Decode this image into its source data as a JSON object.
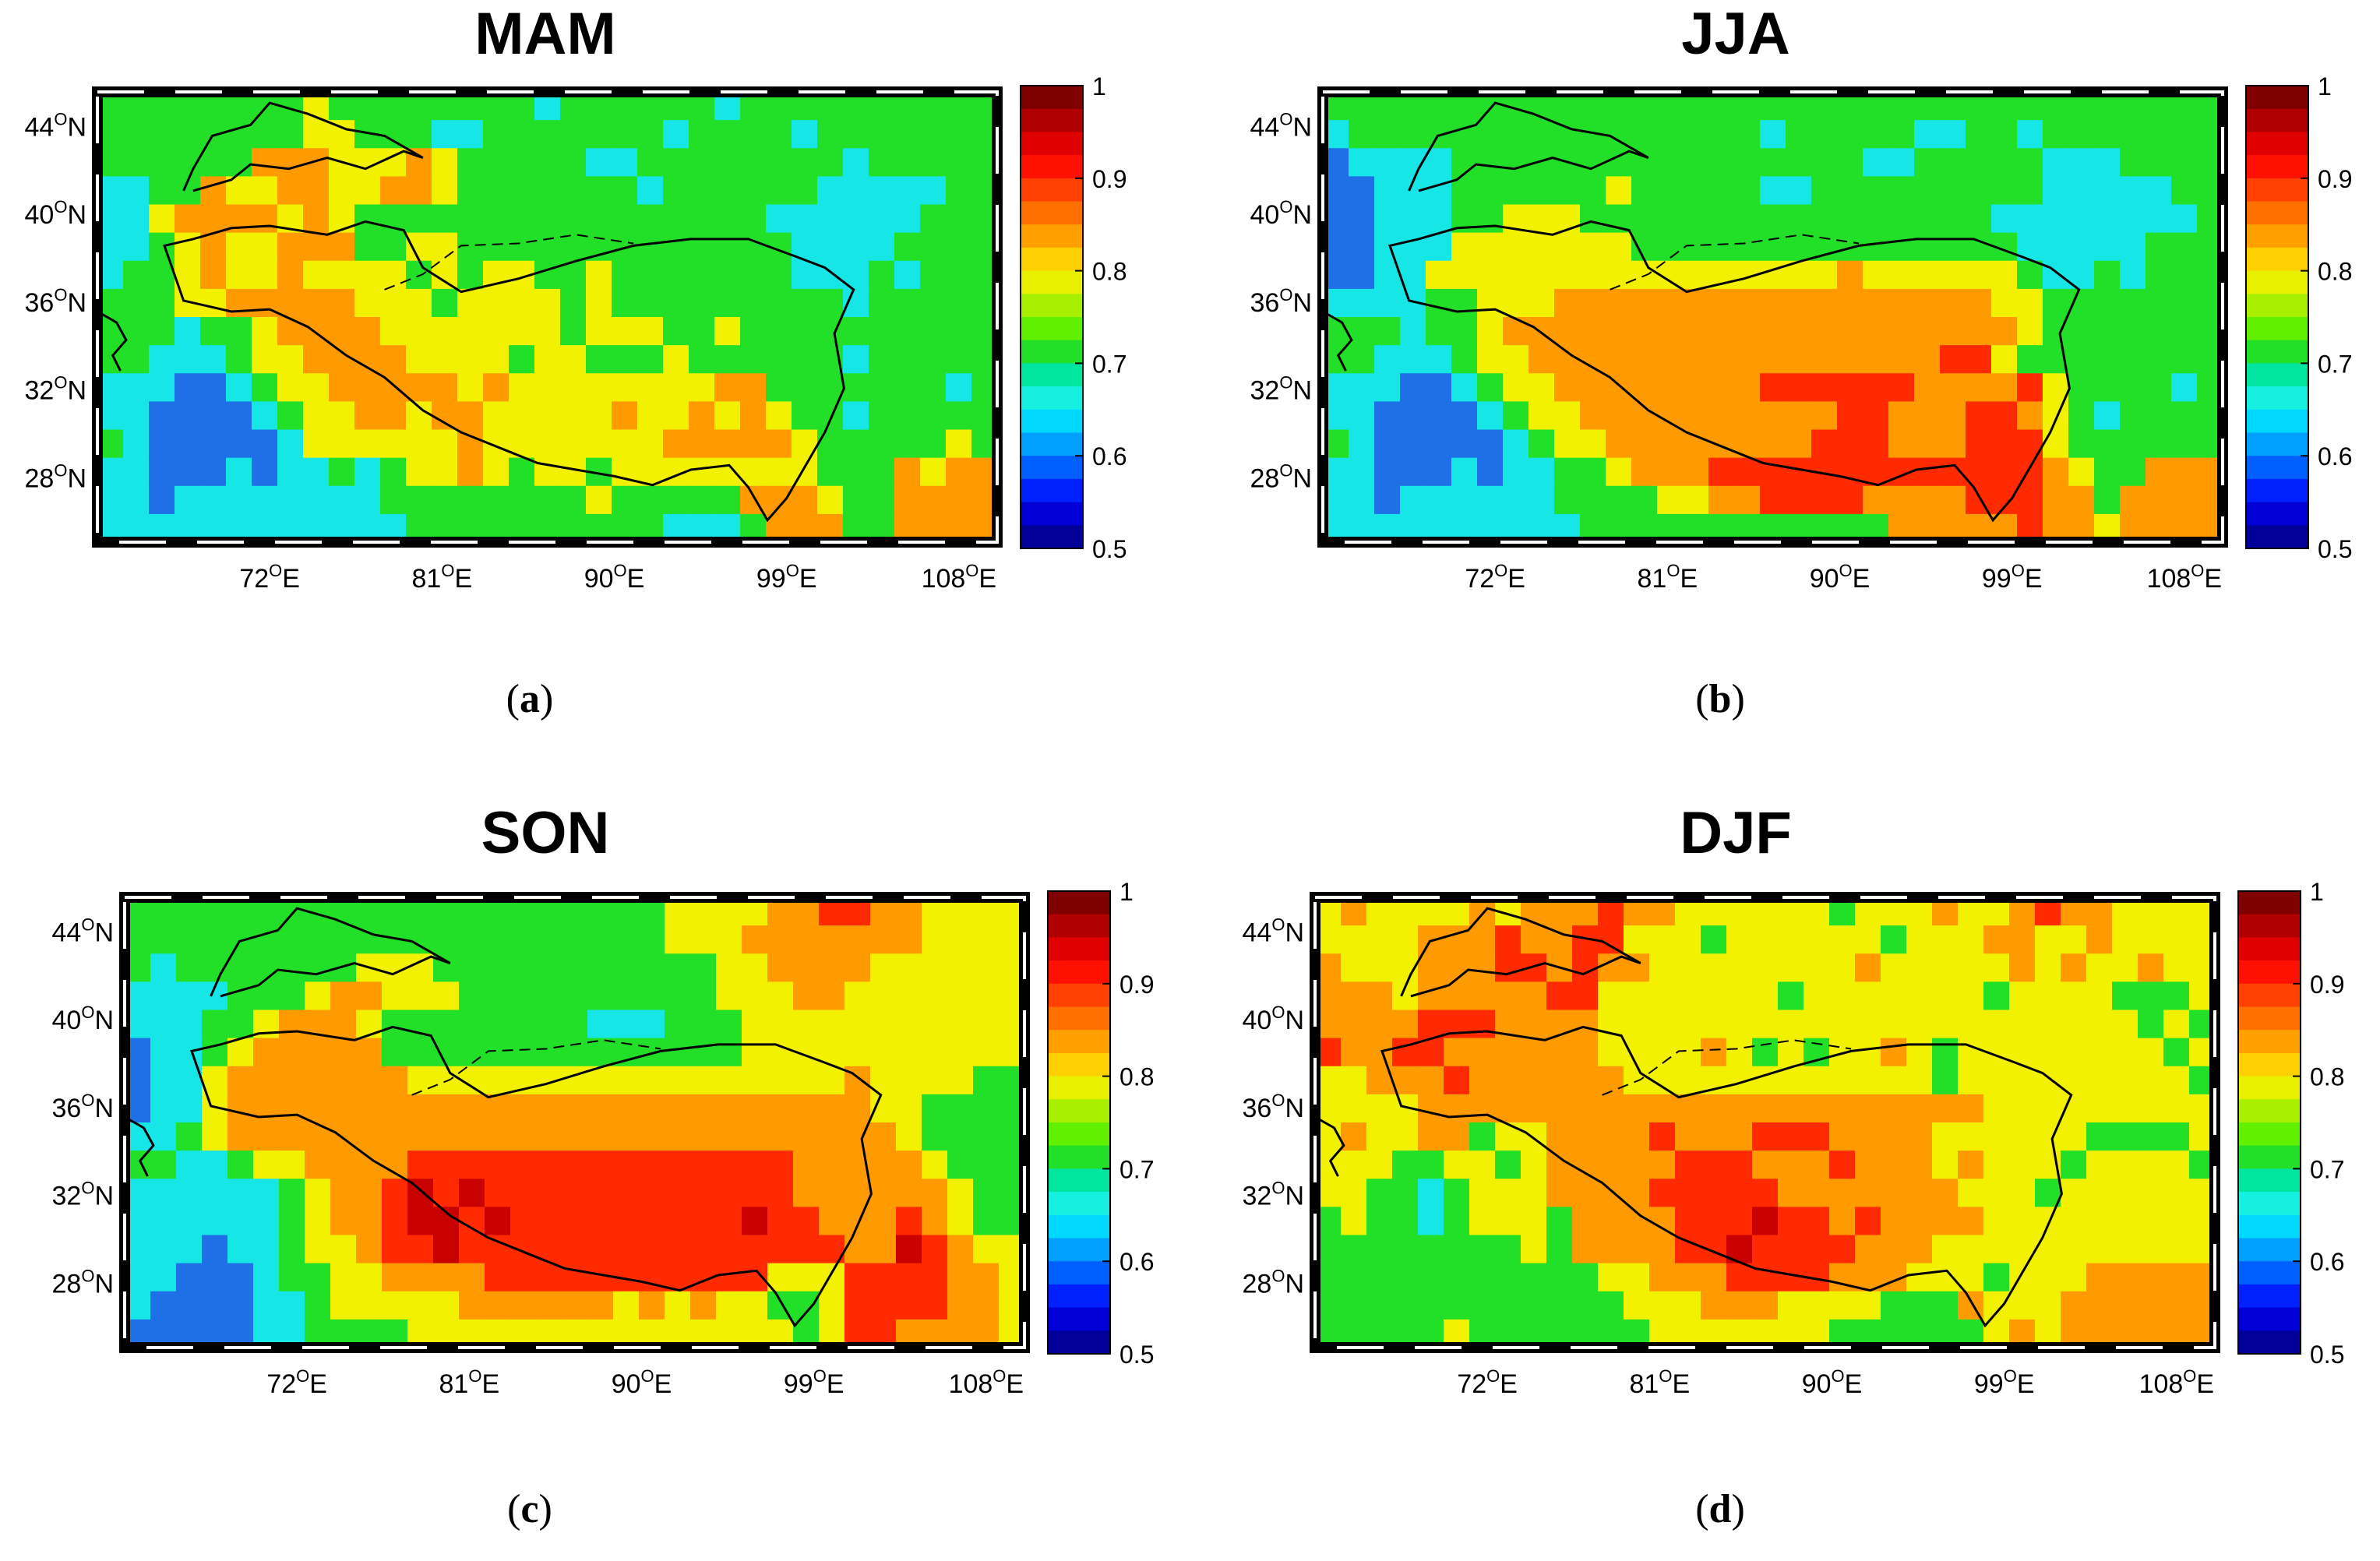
{
  "chart_data": [
    {
      "type": "heatmap",
      "title": "MAM",
      "caption_letter": "a",
      "map_region": "Tibetan Plateau",
      "lon_ticks": [
        "72",
        "81",
        "90",
        "99",
        "108"
      ],
      "lat_ticks": [
        "44",
        "40",
        "36",
        "32",
        "28"
      ],
      "lon_suffix": "E",
      "lat_suffix": "N",
      "degree_mark": "O",
      "colorbar_ticks": [
        "1",
        "0.9",
        "0.8",
        "0.7",
        "0.6",
        "0.5"
      ],
      "colorbar_range": [
        0.5,
        1.0
      ],
      "grid": {
        "lon_range": [
          63,
          110
        ],
        "lat_range": [
          25,
          45.5
        ],
        "rows": [
          "GGGGGGGGYGGGGGGGGCGGGGGGCGGGGGGGGGG",
          "GGGGGGGGYYGGGCCGGGGGGGCGGGGCGGGGGGG",
          "GGGGGGOOOYYYOYGGGGGCCGGGGGGGGCGGGGG",
          "CCGGOYYOOYYOOYGGGGGGGCGGGGGGCCCCCGG",
          "CCYOOOOYOYGGGGGGGGGGGGGGGGCCCCCCGGG",
          "CCGYOYYOOOGGYYGGGGGGGGGGGGGCCCCGGGG",
          "CGGYOYYOYYYYGYGYYGGYGGGGGGGCCCGCGGG",
          "GGGYYOOOOOYYYGYYYYGYGGGGGGGGGCGGGGG",
          "GGGCGGYOOOOYYYYYYYGYYYGGYGGGGGGGGGG",
          "GGCCCGYYOOOOYYYYGYYGGGYGGGGGGCGGGGG",
          "CCCBBCGYYOOOOOYOYYYYYYYYOOGGGGGGGCG",
          "CCBBBBCGYYOOYOOYYYYYOYYOYOYGGCGGGGG",
          "GCBBBBBCYYYYYYOYYYYYYYOOOOOYGGGGGYG",
          "CCBBBCBCCGCGYYOYGYYGYYYYYYYYGGGOYOO",
          "CCBCCCCCCCCGGGGGGGGYGGGGGOOOYGGOOOO",
          "CCCCCCCCCCCCGGGGGGGGGGCCCGOOOGGOOOO"
        ]
      }
    },
    {
      "type": "heatmap",
      "title": "JJA",
      "caption_letter": "b",
      "map_region": "Tibetan Plateau",
      "lon_ticks": [
        "72",
        "81",
        "90",
        "99",
        "108"
      ],
      "lat_ticks": [
        "44",
        "40",
        "36",
        "32",
        "28"
      ],
      "lon_suffix": "E",
      "lat_suffix": "N",
      "degree_mark": "O",
      "colorbar_ticks": [
        "1",
        "0.9",
        "0.8",
        "0.7",
        "0.6",
        "0.5"
      ],
      "colorbar_range": [
        0.5,
        1.0
      ],
      "grid": {
        "lon_range": [
          63,
          110
        ],
        "lat_range": [
          25,
          45.5
        ],
        "rows": [
          "GGGGGGGGGGGGGGGGGGGGGGGGGGGGGGGGGGG",
          "CGGGGGGGGGGGGGGGGCGGGGGCCGGCGGGGGGG",
          "BCCCCGGGGGGGGGGGGGGGGCCGGGGGCCCGGGG",
          "BBCCCGGGGGGYGGGGGCCGGGGGGGGGCCCCCGG",
          "BBCCCGGYYYGGGGGGGGGGGGGGGGCCCCCCCCG",
          "BBCCCYYYYYYYGGGGGGGGGGGGGGGCCCCCGGG",
          "BBCCYYYYYYYYYYYYYYYYOYYYYYYGCCGCGGG",
          "CCCCGGYYYOOOOOOOOOOOOOOOOOYYGGGGGGG",
          "GGGCGGYOOOOOOOOOOOOOOOOOOOOYGGGGGGG",
          "GGCCCGYYOOOOOOOOOOOOOOOORRYGGGGGGGG",
          "CCCBBCGYYOOOOOOOORRRRRROOOORYGGGGCG",
          "CCBBBBCGYYOOOOOOOOOORROOORROYGCGGGG",
          "GCBBBBBCGYYOOOOOOOORRROOORRRYGGGGGG",
          "CCBBBCBCCGGYOOORRRRRRRRRRRRROYGGOOO",
          "CCBCCCCCCGGGGYYOORRRROOOORRROOGOOOO",
          "CCCCCCCCCCGGGGGGGGGGGGOOOOOROOYOOOO"
        ]
      }
    },
    {
      "type": "heatmap",
      "title": "SON",
      "caption_letter": "c",
      "map_region": "Tibetan Plateau",
      "lon_ticks": [
        "72",
        "81",
        "90",
        "99",
        "108"
      ],
      "lat_ticks": [
        "44",
        "40",
        "36",
        "32",
        "28"
      ],
      "lon_suffix": "E",
      "lat_suffix": "N",
      "degree_mark": "O",
      "colorbar_ticks": [
        "1",
        "0.9",
        "0.8",
        "0.7",
        "0.6",
        "0.5"
      ],
      "colorbar_range": [
        0.5,
        1.0
      ],
      "grid": {
        "lon_range": [
          63,
          110
        ],
        "lat_range": [
          25,
          45.5
        ],
        "rows": [
          "GGGGGGGGGGGGGGGGGGGGGYYYYOORROOYYYY",
          "GGGGGGGGGGGGGGGGGGGGGYYYOOOOOOOYYYY",
          "GCGGGGGGGYYYGGGGGGGGGGGYYOOOOYYYYYY",
          "CCCCGGGYOOYYYGGGGGGGGGGYYYOOYYYYYYY",
          "CCCGGYOOOYGGGGGGGGCCCGGGYYYYYYYYYYY",
          "BCCGYOOOOOGGGGGGGGGGGGGGYYYYYYYYYYY",
          "BCCYOOOOOOOYYYYYYYYYYYYYYYYYOYYYYGG",
          "BCCYOOOOOOOOOOOOOOOOOOOOOOOOOYYGGGG",
          "CCGYOOOOOOOOOOOOOOOOOOOOOOOOOOYGGGG",
          "GGCCGYYOOOORRRRRRRRRRRRRRROOOOOYGGG",
          "CCCCCCGYOORDRDRRRRRRRRRRRROOOOOOYGG",
          "CCCCCCGYOORDDRDRRRRRRRRRDRROOOROYGG",
          "CCCBCCGYYORRDRRRRRRRRRRRRRRROODROYY",
          "CCBBBCGGYYOOOORRRRRRRRRRRYYYRRRROOY",
          "CBBBBCCGYYYYYOOOOOOYOYOYYGGYRRRROOY",
          "BBBBBCCGGGGYYYYYYYYYYYYYYYGYRROOOOY"
        ]
      }
    },
    {
      "type": "heatmap",
      "title": "DJF",
      "caption_letter": "d",
      "map_region": "Tibetan Plateau",
      "lon_ticks": [
        "72",
        "81",
        "90",
        "99",
        "108"
      ],
      "lat_ticks": [
        "44",
        "40",
        "36",
        "32",
        "28"
      ],
      "lon_suffix": "E",
      "lat_suffix": "N",
      "degree_mark": "O",
      "colorbar_ticks": [
        "1",
        "0.9",
        "0.8",
        "0.7",
        "0.6",
        "0.5"
      ],
      "colorbar_range": [
        0.5,
        1.0
      ],
      "grid": {
        "lon_range": [
          63,
          110
        ],
        "lat_range": [
          25,
          45.5
        ],
        "rows": [
          "YOYYYYOYOOOROOYYYYYYGYYYOYYOROOYYYY",
          "YYYYOOOROORRYYYGYYYYYYGYYYOOYYOYYYY",
          "OYYYOOORROROOYYYYYYYYOYYYYYOYOYYOYY",
          "OOOYOOOOORRYYYYYYYGYYYYYYYGYYYYGGGY",
          "OOOORRROOOOYYYYYYYYYYYYYYYYYYYYYGYG",
          "ROORROOOOOOYYYYOYGYGYYOYGYYYYYYYYGY",
          "YYOOOROOOOOOYYYYYYYYYYYYGYYYYYYYYYG",
          "YYYYOOOOOOOOOOOOOOOOOOOOOOYYYYYYYYY",
          "YOYYOOGYYOOOOROOORRROOOOYYYYYYGGGGY",
          "YYYGGYYGYOOOOORRROOOROOOYOYYYGYYYYG",
          "YYGGCGYYYOOOORRRRROOOOOOOYYYGYYYYYY",
          "GYGGCGYYYGOOOORRRDRROROOOOYYYYYYYYY",
          "GGGGGGGGYGOOOORRDRRRROOOYYYYYYYYYYY",
          "GGGGGGGGGGGYYOOORRRROOOYYYGYYYOOOOO",
          "GGGGGGGGGGGGYYYOOOYYYYGGGOYYYOOOOOO",
          "GGGGGYGGGGGGGYYYYYYYGGGGGGYOYOOOOOO"
        ]
      }
    }
  ]
}
